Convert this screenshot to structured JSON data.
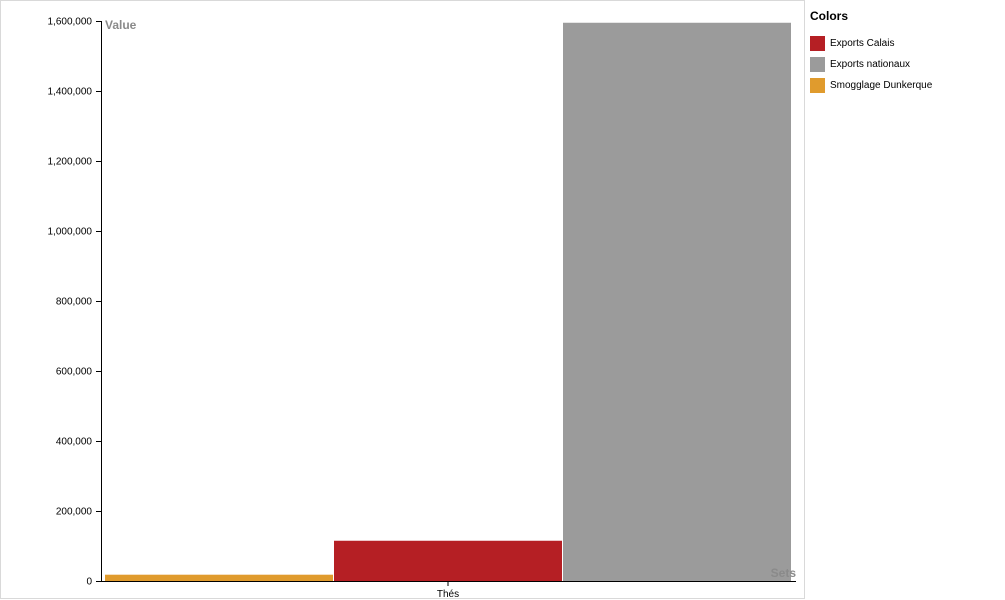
{
  "chart_data": {
    "type": "bar",
    "categories": [
      "Thés"
    ],
    "series": [
      {
        "name": "Smogglage Dunkerque",
        "values": [
          18000
        ],
        "color": "#e09b2d"
      },
      {
        "name": "Exports Calais",
        "values": [
          115000
        ],
        "color": "#b51f24"
      },
      {
        "name": "Exports nationaux",
        "values": [
          1595000
        ],
        "color": "#9b9b9b"
      }
    ],
    "ylabel": "Value",
    "xlabel": "Sets",
    "ylim": [
      0,
      1600000
    ],
    "yticks": [
      "0",
      "200,000",
      "400,000",
      "600,000",
      "800,000",
      "1,000,000",
      "1,200,000",
      "1,400,000",
      "1,600,000"
    ],
    "grid": false,
    "legend_position": "right"
  },
  "legend": {
    "title": "Colors",
    "items": [
      {
        "label": "Exports Calais",
        "color": "#b51f24"
      },
      {
        "label": "Exports nationaux",
        "color": "#9b9b9b"
      },
      {
        "label": "Smogglage Dunkerque",
        "color": "#e09b2d"
      }
    ]
  }
}
